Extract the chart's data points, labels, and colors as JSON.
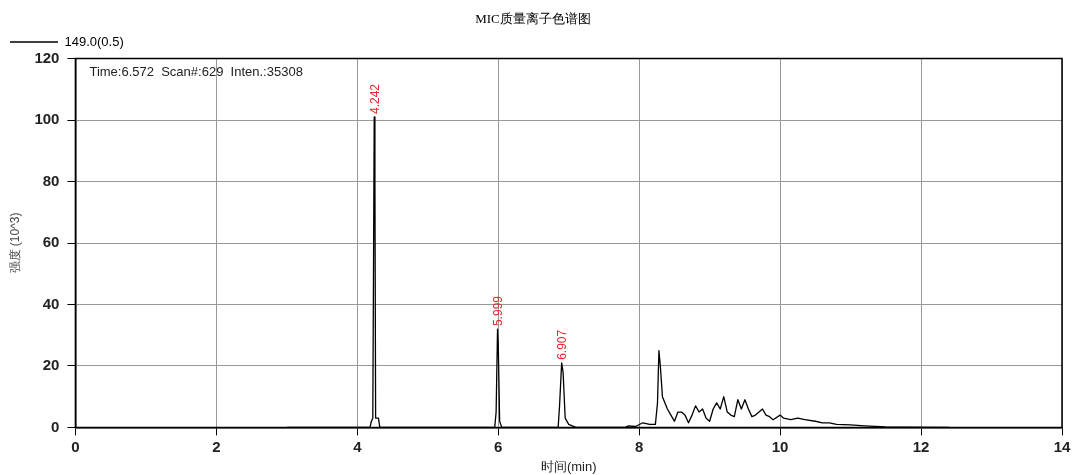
{
  "chart_data": {
    "type": "line",
    "title": "MIC质量离子色谱图",
    "xlabel": "时间(min)",
    "ylabel": "强度 (10^3)",
    "xlim": [
      0,
      14
    ],
    "xticks": [
      0,
      2,
      4,
      6,
      8,
      10,
      12,
      14
    ],
    "ylim": [
      0,
      120
    ],
    "yticks": [
      0,
      20,
      40,
      60,
      80,
      100,
      120
    ],
    "grid": true,
    "legend": "top left",
    "marker": "none",
    "line_style": "solid",
    "series": [
      {
        "name": "149.0(0.5)",
        "color": "#000000",
        "x": [
          3.0,
          4.18,
          4.2,
          4.22,
          4.24,
          4.25,
          4.26,
          4.3,
          4.32,
          5.95,
          5.97,
          5.99,
          6.0,
          6.02,
          6.05,
          6.85,
          6.87,
          6.9,
          6.92,
          6.95,
          7.0,
          7.1,
          7.8,
          7.85,
          7.95,
          8.05,
          8.15,
          8.23,
          8.26,
          8.28,
          8.3,
          8.33,
          8.4,
          8.45,
          8.5,
          8.55,
          8.6,
          8.65,
          8.7,
          8.75,
          8.8,
          8.85,
          8.9,
          8.95,
          9.0,
          9.05,
          9.1,
          9.15,
          9.2,
          9.25,
          9.3,
          9.35,
          9.4,
          9.45,
          9.5,
          9.55,
          9.6,
          9.65,
          9.75,
          9.8,
          9.85,
          9.9,
          10.0,
          10.05,
          10.15,
          10.25,
          10.35,
          10.5,
          10.6,
          10.7,
          10.8,
          11.0,
          11.2,
          11.5,
          11.8,
          12.4
        ],
        "values": [
          0,
          0,
          2,
          3,
          101,
          80,
          3,
          3,
          0,
          0,
          5,
          32,
          27,
          2,
          0,
          0,
          7,
          21,
          18,
          3,
          1,
          0,
          0,
          0.5,
          0.3,
          1.5,
          1,
          1,
          8,
          25,
          20,
          10,
          6,
          4,
          2,
          5,
          5,
          4,
          1.5,
          4,
          7,
          5,
          6,
          3,
          2,
          6,
          8,
          6,
          10,
          5,
          4,
          3.5,
          9,
          6,
          9,
          6,
          3.5,
          4,
          6,
          4,
          3.5,
          2.5,
          4,
          3,
          2.5,
          3,
          2.5,
          2,
          1.5,
          1.5,
          1,
          0.8,
          0.5,
          0.2,
          0.1,
          0
        ]
      }
    ],
    "annotations": [
      "Time:6.572  Scan#:629  Inten.:35308",
      {
        "text": "4.242",
        "x": 4.242,
        "y": 101
      },
      {
        "text": "5.999",
        "x": 5.999,
        "y": 32
      },
      {
        "text": "6.907",
        "x": 6.907,
        "y": 21
      }
    ]
  }
}
